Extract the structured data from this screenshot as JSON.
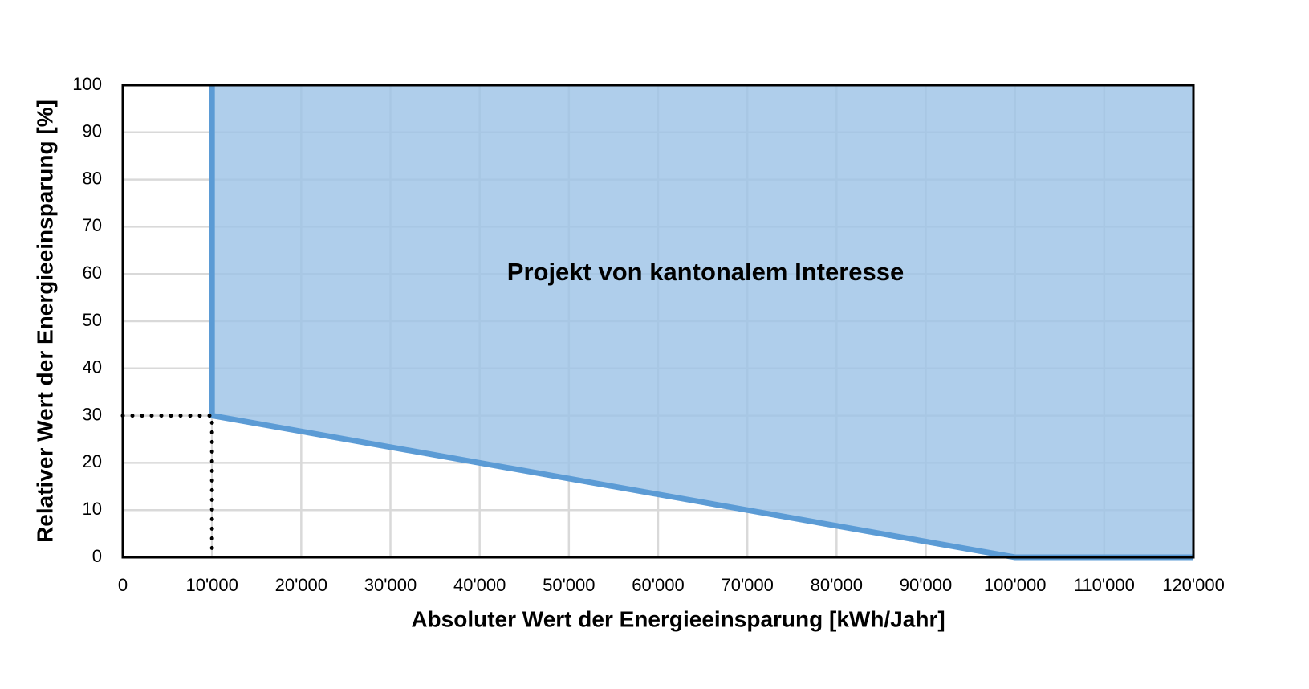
{
  "chart_data": {
    "type": "area",
    "x_label": "Absoluter Wert der Energieeinsparung [kWh/Jahr]",
    "y_label": "Relativer Wert der Energieeinsparung [%]",
    "annotation": "Projekt von kantonalem Interesse",
    "x": [
      10000,
      10000,
      100000,
      120000
    ],
    "series": [
      {
        "color": "#5b9bd5",
        "fill": "#9dc3e6",
        "values": [
          100,
          30,
          0,
          0
        ]
      }
    ],
    "reference_point": {
      "x": 10000,
      "y": 30
    },
    "xlim": [
      0,
      120000
    ],
    "ylim": [
      0,
      100
    ],
    "xticks": [
      0,
      {
        "value": 10000,
        "label": "10'000"
      },
      {
        "value": 20000,
        "label": "20'000"
      },
      {
        "value": 30000,
        "label": "30'000"
      },
      {
        "value": 40000,
        "label": "40'000"
      },
      {
        "value": 50000,
        "label": "50'000"
      },
      {
        "value": 60000,
        "label": "60'000"
      },
      {
        "value": 70000,
        "label": "70'000"
      },
      {
        "value": 80000,
        "label": "80'000"
      },
      {
        "value": 90000,
        "label": "90'000"
      },
      {
        "value": 100000,
        "label": "100'000"
      },
      {
        "value": 110000,
        "label": "110'000"
      },
      {
        "value": 120000,
        "label": "120'000"
      }
    ],
    "yticks": [
      0,
      10,
      20,
      30,
      40,
      50,
      60,
      70,
      80,
      90,
      100
    ],
    "grid": true
  }
}
